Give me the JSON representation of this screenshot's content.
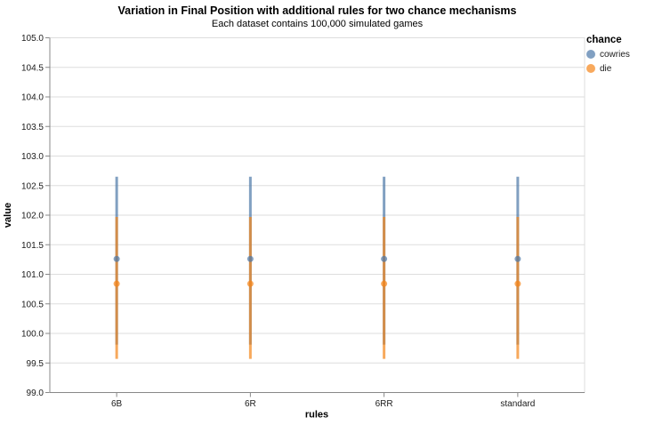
{
  "chart_data": {
    "type": "scatter",
    "subtype": "pointrange-errorbar",
    "title": "Variation in Final Position with additional rules for two chance mechanisms",
    "subtitle": "Each dataset contains 100,000 simulated games",
    "xlabel": "rules",
    "ylabel": "value",
    "ylim": [
      99.0,
      105.0
    ],
    "ytick_step": 0.5,
    "grid": true,
    "legend_title": "chance",
    "legend_position": "right",
    "mark_opacity": 0.7,
    "categories": [
      "6B",
      "6R",
      "6RR",
      "standard"
    ],
    "series": [
      {
        "name": "cowries",
        "color": "#4c78a8",
        "mean": [
          101.26,
          101.26,
          101.26,
          101.26
        ],
        "lo": [
          99.81,
          99.81,
          99.81,
          99.81
        ],
        "hi": [
          102.65,
          102.65,
          102.65,
          102.65
        ]
      },
      {
        "name": "die",
        "color": "#f58518",
        "mean": [
          100.84,
          100.84,
          100.84,
          100.84
        ],
        "lo": [
          99.57,
          99.57,
          99.57,
          99.57
        ],
        "hi": [
          101.97,
          101.97,
          101.97,
          101.97
        ]
      }
    ]
  }
}
